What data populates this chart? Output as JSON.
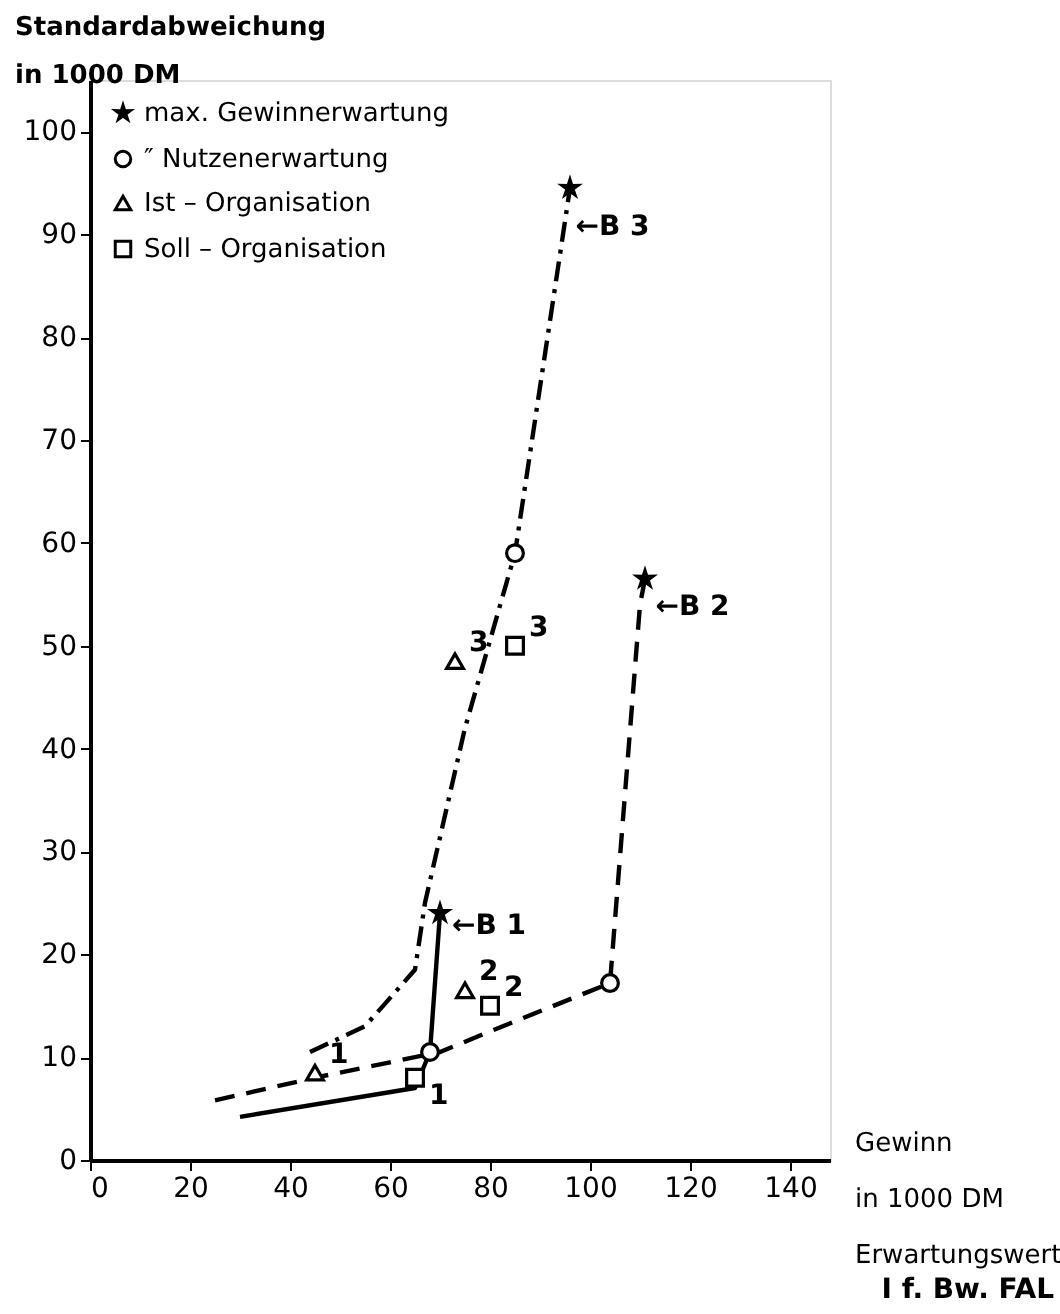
{
  "chart_data": {
    "type": "line",
    "xlabel": "Gewinn\nin 1000 DM\nErwartungswert",
    "ylabel": "Standardabweichung\nin 1000 DM",
    "xlim": [
      0,
      148
    ],
    "ylim": [
      0,
      105
    ],
    "xticks": [
      0,
      20,
      40,
      60,
      80,
      100,
      120,
      140
    ],
    "yticks": [
      0,
      10,
      20,
      30,
      40,
      50,
      60,
      70,
      80,
      90,
      100
    ],
    "grid": false,
    "legend": "top left",
    "series": [
      {
        "color": "#000000",
        "line_style": "solid",
        "x": [
          30,
          65,
          68,
          70
        ],
        "values": [
          4.2,
          7,
          10.5,
          24
        ]
      },
      {
        "color": "#000000",
        "line_style": "dashed",
        "x": [
          25,
          45,
          60,
          70,
          80,
          104,
          110,
          111
        ],
        "values": [
          5.8,
          8,
          9.5,
          10.5,
          12.5,
          17.2,
          54,
          56.5
        ]
      },
      {
        "color": "#000000",
        "line_style": "dashdot",
        "x": [
          44,
          55,
          65,
          67,
          75,
          85,
          96
        ],
        "values": [
          10.5,
          13,
          18.5,
          25,
          42,
          59,
          94.5
        ]
      },
      {
        "type": "scatter",
        "name": "max. Gewinnerwartung",
        "color": "#000000",
        "marker": "star",
        "x": [
          70,
          111,
          96
        ],
        "values": [
          24,
          56.5,
          94.5
        ]
      },
      {
        "type": "scatter",
        "name": "″   Nutzenerwartung",
        "color": "#000000",
        "marker": "circle",
        "x": [
          68,
          104,
          85
        ],
        "values": [
          10.5,
          17.2,
          59
        ]
      },
      {
        "type": "scatter",
        "name": "Ist – Organisation",
        "color": "#000000",
        "marker": "triangle",
        "x": [
          45,
          75,
          73
        ],
        "values": [
          8.5,
          16.5,
          48.5
        ]
      },
      {
        "type": "scatter",
        "name": "Soll – Organisation",
        "color": "#000000",
        "marker": "square",
        "x": [
          65,
          80,
          85
        ],
        "values": [
          8,
          15,
          50
        ]
      }
    ],
    "annotations": [
      {
        "text": "←B 1",
        "x": 69.6,
        "y": 21
      },
      {
        "text": "←B 2",
        "x": 110.3,
        "y": 52
      },
      {
        "text": "←B 3",
        "x": 94.3,
        "y": 89
      },
      {
        "text": "1",
        "x": 45,
        "y": 8.5
      },
      {
        "text": "2",
        "x": 75,
        "y": 16.5
      },
      {
        "text": "3",
        "x": 73,
        "y": 48.5
      },
      {
        "text": "1",
        "x": 65,
        "y": 8
      },
      {
        "text": "2",
        "x": 80,
        "y": 15
      },
      {
        "text": "3",
        "x": 85,
        "y": 50
      },
      "I f. Bw. FAL"
    ]
  }
}
